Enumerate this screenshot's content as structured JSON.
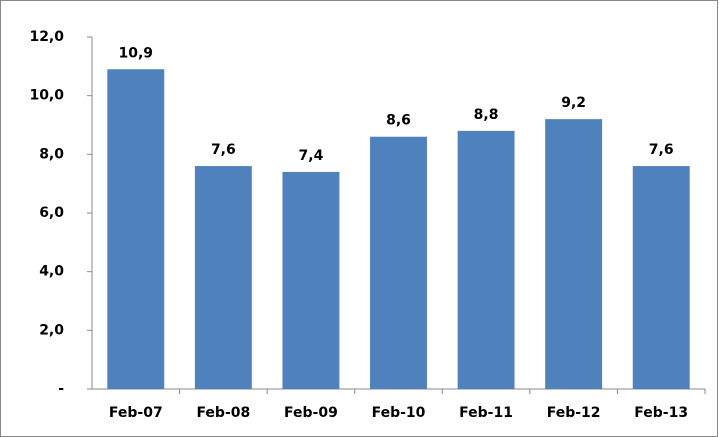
{
  "chart_data": {
    "type": "bar",
    "categories": [
      "Feb-07",
      "Feb-08",
      "Feb-09",
      "Feb-10",
      "Feb-11",
      "Feb-12",
      "Feb-13"
    ],
    "values": [
      10.9,
      7.6,
      7.4,
      8.6,
      8.8,
      9.2,
      7.6
    ],
    "value_labels": [
      "10,9",
      "7,6",
      "7,4",
      "8,6",
      "8,8",
      "9,2",
      "7,6"
    ],
    "color": "#4f81bd",
    "ylim": [
      0,
      12
    ],
    "yticks": [
      {
        "value": 0,
        "label": "-"
      },
      {
        "value": 2,
        "label": "2,0"
      },
      {
        "value": 4,
        "label": "4,0"
      },
      {
        "value": 6,
        "label": "6,0"
      },
      {
        "value": 8,
        "label": "8,0"
      },
      {
        "value": 10,
        "label": "10,0"
      },
      {
        "value": 12,
        "label": "12,0"
      }
    ],
    "grid": false
  }
}
